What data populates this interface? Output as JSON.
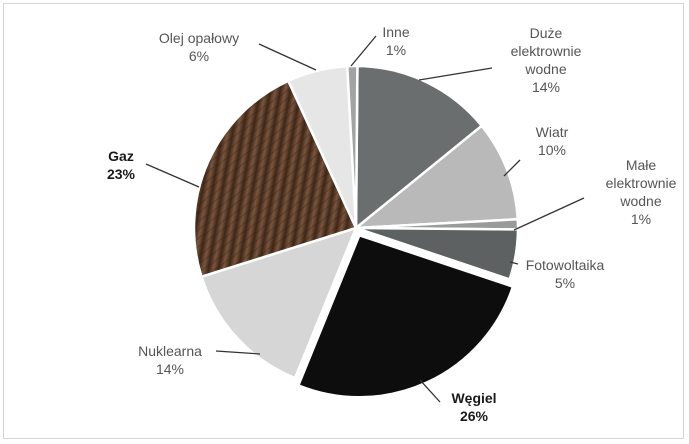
{
  "chart_data": {
    "type": "pie",
    "title": "",
    "unit": "%",
    "slices": [
      {
        "label": "Duże elektrownie wodne",
        "lines": [
          "Duże",
          "elektrownie",
          "wodne",
          "14%"
        ],
        "value": 14,
        "color": "#6b6e6f",
        "bold": false
      },
      {
        "label": "Wiatr",
        "lines": [
          "Wiatr",
          "10%"
        ],
        "value": 10,
        "color": "#b9b9b9",
        "bold": false
      },
      {
        "label": "Małe elektrownie wodne",
        "lines": [
          "Małe",
          "elektrownie",
          "wodne",
          "1%"
        ],
        "value": 1,
        "color": "#9a9a9a",
        "bold": false
      },
      {
        "label": "Fotowoltaika",
        "lines": [
          "Fotowoltaika",
          "5%"
        ],
        "value": 5,
        "color": "#5e6161",
        "bold": false
      },
      {
        "label": "Węgiel",
        "lines": [
          "Węgiel",
          "26%"
        ],
        "value": 26,
        "color": "#0d0d0d",
        "bold": true
      },
      {
        "label": "Nuklearna",
        "lines": [
          "Nuklearna",
          "14%"
        ],
        "value": 14,
        "color": "#d6d6d6",
        "bold": false
      },
      {
        "label": "Gaz",
        "lines": [
          "Gaz",
          "23%"
        ],
        "value": 23,
        "color": "#5a3a26",
        "bold": true
      },
      {
        "label": "Olej opałowy",
        "lines": [
          "Olej opałowy",
          "6%"
        ],
        "value": 6,
        "color": "#e6e6e6",
        "bold": false
      },
      {
        "label": "Inne",
        "lines": [
          "Inne",
          "1%"
        ],
        "value": 1,
        "color": "#a3a3a3",
        "bold": false
      }
    ],
    "colors": {
      "wood_dark": "#3f2616",
      "wood_light": "#7a5640"
    }
  }
}
